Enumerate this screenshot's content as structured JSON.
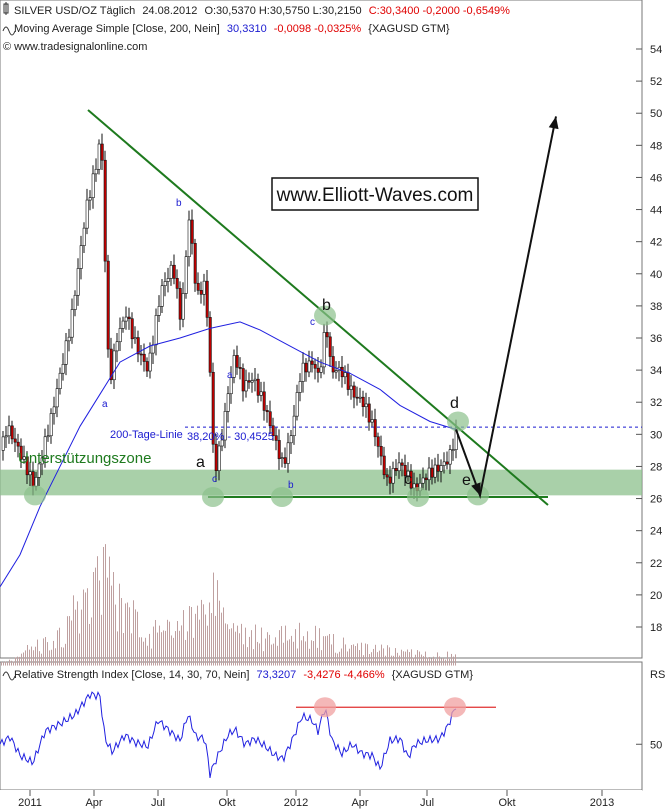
{
  "header": {
    "line1": {
      "symbol": "SILVER USD/OZ Täglich",
      "date": "24.08.2012",
      "ohlc": "O:30,5370 H:30,5750 L:30,2150",
      "close_change": "C:30,3400 -0,2000 -0,6549%"
    },
    "line2": {
      "label": "Moving Average Simple [Close, 200, Nein]",
      "value": "30,3310",
      "change": "-0,0098 -0,0325%",
      "tag": "{XAGUSD GTM}"
    },
    "line3": "© www.tradesignalonline.com"
  },
  "rsi_header": {
    "label": "Relative Strength Index [Close, 14, 30, 70, Nein]",
    "value": "73,3207",
    "change": "-3,4276 -4,466%",
    "tag": "{XAGUSD GTM}",
    "rs": "RS"
  },
  "watermark": "www.Elliott-Waves.com",
  "annotations": {
    "support": "Unterstützungszone",
    "ma_label": "200-Tage-Linie",
    "fib": "38,20% - 30,4525",
    "waves_big": [
      "a",
      "b",
      "c",
      "d",
      "e"
    ],
    "waves_small": [
      "a",
      "b",
      "a",
      "b",
      "c",
      "c",
      "b"
    ]
  },
  "colors": {
    "up": "#ffffff",
    "down": "#c00000",
    "trend": "#1e7a1e",
    "zone": "#8cc08c",
    "ma": "#2020e0",
    "rsi": "#2020e0",
    "rsi_line": "#e03030",
    "arrow": "#111111"
  },
  "chart_data": {
    "type": "candlestick",
    "title": "SILVER USD/OZ Täglich",
    "ylim": [
      15,
      55
    ],
    "yticks": [
      18,
      20,
      22,
      24,
      26,
      28,
      30,
      32,
      34,
      36,
      38,
      40,
      42,
      44,
      46,
      48,
      50,
      52,
      54
    ],
    "xticks": [
      "2011",
      "Apr",
      "Jul",
      "Okt",
      "2012",
      "Apr",
      "Jul",
      "Okt",
      "2013"
    ],
    "price_path": [
      [
        0,
        29
      ],
      [
        6,
        30.5
      ],
      [
        18,
        29
      ],
      [
        33,
        26.8
      ],
      [
        50,
        31
      ],
      [
        70,
        37
      ],
      [
        85,
        44
      ],
      [
        96,
        47
      ],
      [
        100,
        49
      ],
      [
        104,
        41
      ],
      [
        108,
        33
      ],
      [
        116,
        36
      ],
      [
        125,
        37.5
      ],
      [
        135,
        35.5
      ],
      [
        147,
        34
      ],
      [
        160,
        39
      ],
      [
        172,
        40.5
      ],
      [
        180,
        37
      ],
      [
        188,
        43.5
      ],
      [
        196,
        38.5
      ],
      [
        204,
        39.5
      ],
      [
        209,
        34
      ],
      [
        213,
        27.5
      ],
      [
        220,
        29.5
      ],
      [
        228,
        33
      ],
      [
        234,
        35
      ],
      [
        242,
        33
      ],
      [
        252,
        33.5
      ],
      [
        262,
        32
      ],
      [
        272,
        30
      ],
      [
        282,
        28
      ],
      [
        290,
        30
      ],
      [
        300,
        34
      ],
      [
        312,
        34.5
      ],
      [
        318,
        33.5
      ],
      [
        325,
        37
      ],
      [
        330,
        34
      ],
      [
        340,
        34
      ],
      [
        352,
        32.5
      ],
      [
        362,
        32
      ],
      [
        372,
        30.5
      ],
      [
        380,
        28.5
      ],
      [
        386,
        27
      ],
      [
        398,
        28.2
      ],
      [
        406,
        27.5
      ],
      [
        414,
        26.5
      ],
      [
        426,
        27.5
      ],
      [
        440,
        28
      ],
      [
        448,
        28.5
      ],
      [
        456,
        30.3
      ]
    ],
    "ma_200": [
      [
        0,
        20.5
      ],
      [
        20,
        22.5
      ],
      [
        40,
        25.5
      ],
      [
        60,
        28
      ],
      [
        80,
        30.5
      ],
      [
        100,
        32.5
      ],
      [
        120,
        34.5
      ],
      [
        150,
        35.5
      ],
      [
        180,
        36
      ],
      [
        210,
        36.6
      ],
      [
        240,
        37
      ],
      [
        260,
        36.5
      ],
      [
        290,
        35.5
      ],
      [
        320,
        34.5
      ],
      [
        350,
        33.8
      ],
      [
        380,
        32.8
      ],
      [
        400,
        31.8
      ],
      [
        430,
        30.8
      ],
      [
        456,
        30.3
      ]
    ],
    "volume_path": [
      [
        0,
        15.8
      ],
      [
        30,
        17
      ],
      [
        60,
        18.3
      ],
      [
        80,
        21
      ],
      [
        96,
        23
      ],
      [
        104,
        24
      ],
      [
        115,
        21
      ],
      [
        150,
        18.5
      ],
      [
        200,
        20
      ],
      [
        212,
        22.5
      ],
      [
        225,
        19.5
      ],
      [
        260,
        18
      ],
      [
        300,
        18.5
      ],
      [
        330,
        17.8
      ],
      [
        370,
        17
      ],
      [
        400,
        16.8
      ],
      [
        456,
        16.6
      ]
    ],
    "support_zone": [
      26.2,
      27.8
    ],
    "fib_level": {
      "label": "38,20% - 30,4525",
      "value": 30.45
    },
    "trendline": {
      "from": {
        "x": 88,
        "y": 50.2
      },
      "to": {
        "x": 548,
        "y": 25.6
      }
    },
    "support_line": {
      "from": {
        "x": 208,
        "y": 26.1
      },
      "to": {
        "x": 548,
        "y": 26.1
      }
    },
    "projection": [
      [
        456,
        30.3
      ],
      [
        480,
        26.2
      ],
      [
        556,
        49.8
      ]
    ],
    "markers": [
      {
        "x": 35,
        "y": 26.2
      },
      {
        "x": 213,
        "y": 26.1
      },
      {
        "x": 282,
        "y": 26.1
      },
      {
        "x": 325,
        "y": 37.4
      },
      {
        "x": 418,
        "y": 26.1
      },
      {
        "x": 458,
        "y": 30.8
      },
      {
        "x": 478,
        "y": 26.2
      }
    ],
    "rsi": {
      "ylim": [
        28,
        82
      ],
      "yticks": [
        50
      ],
      "overbought": 70,
      "path": [
        [
          0,
          50
        ],
        [
          10,
          54
        ],
        [
          20,
          44
        ],
        [
          33,
          40
        ],
        [
          45,
          57
        ],
        [
          60,
          61
        ],
        [
          75,
          66
        ],
        [
          90,
          77
        ],
        [
          100,
          76
        ],
        [
          105,
          53
        ],
        [
          112,
          46
        ],
        [
          125,
          55
        ],
        [
          135,
          51
        ],
        [
          148,
          49
        ],
        [
          158,
          63
        ],
        [
          170,
          57
        ],
        [
          180,
          52
        ],
        [
          188,
          66
        ],
        [
          196,
          54
        ],
        [
          205,
          53
        ],
        [
          210,
          34
        ],
        [
          218,
          44
        ],
        [
          228,
          55
        ],
        [
          235,
          58
        ],
        [
          245,
          50
        ],
        [
          255,
          53
        ],
        [
          265,
          49
        ],
        [
          275,
          44
        ],
        [
          283,
          42
        ],
        [
          292,
          52
        ],
        [
          302,
          65
        ],
        [
          312,
          63
        ],
        [
          318,
          57
        ],
        [
          325,
          70
        ],
        [
          332,
          52
        ],
        [
          342,
          45
        ],
        [
          352,
          50
        ],
        [
          362,
          45
        ],
        [
          372,
          44
        ],
        [
          380,
          37
        ],
        [
          390,
          52
        ],
        [
          400,
          53
        ],
        [
          408,
          43
        ],
        [
          415,
          50
        ],
        [
          425,
          52
        ],
        [
          440,
          53
        ],
        [
          448,
          60
        ],
        [
          456,
          71
        ]
      ],
      "markers": [
        {
          "x": 325,
          "y": 70
        },
        {
          "x": 455,
          "y": 70
        }
      ]
    }
  }
}
